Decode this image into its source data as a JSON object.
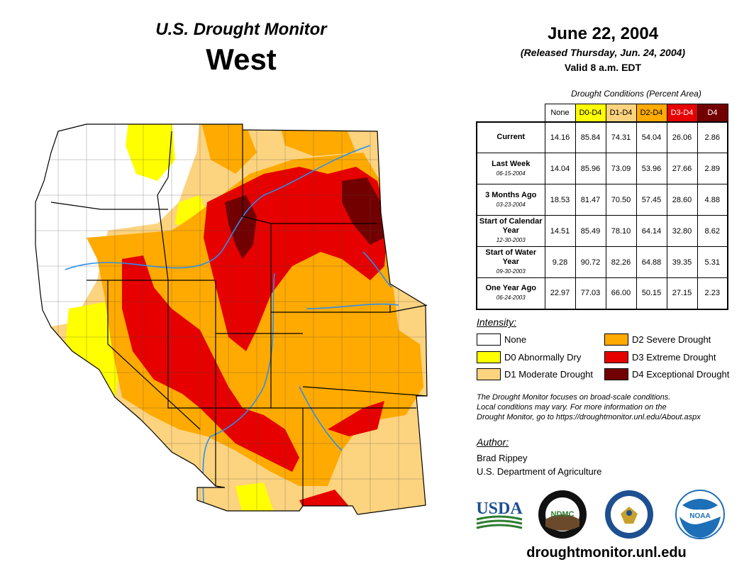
{
  "header": {
    "subtitle": "U.S. Drought Monitor",
    "region": "West"
  },
  "date": {
    "main": "June 22, 2004",
    "released": "(Released Thursday, Jun. 24, 2004)",
    "valid": "Valid 8 a.m. EDT"
  },
  "table": {
    "caption": "Drought Conditions (Percent Area)",
    "columns": [
      {
        "label": "None",
        "color": "#ffffff",
        "text_color": "#000000"
      },
      {
        "label": "D0-D4",
        "color": "#ffff00",
        "text_color": "#000000"
      },
      {
        "label": "D1-D4",
        "color": "#fcd37f",
        "text_color": "#000000"
      },
      {
        "label": "D2-D4",
        "color": "#ffaa00",
        "text_color": "#000000"
      },
      {
        "label": "D3-D4",
        "color": "#e60000",
        "text_color": "#ffffff"
      },
      {
        "label": "D4",
        "color": "#730000",
        "text_color": "#ffffff"
      }
    ],
    "rows": [
      {
        "label": "Current",
        "date": "",
        "values": [
          "14.16",
          "85.84",
          "74.31",
          "54.04",
          "26.06",
          "2.86"
        ]
      },
      {
        "label": "Last Week",
        "date": "06-15-2004",
        "values": [
          "14.04",
          "85.96",
          "73.09",
          "53.96",
          "27.66",
          "2.89"
        ]
      },
      {
        "label": "3 Months Ago",
        "date": "03-23-2004",
        "values": [
          "18.53",
          "81.47",
          "70.50",
          "57.45",
          "28.60",
          "4.88"
        ]
      },
      {
        "label": "Start of Calendar Year",
        "date": "12-30-2003",
        "values": [
          "14.51",
          "85.49",
          "78.10",
          "64.14",
          "32.80",
          "8.62"
        ]
      },
      {
        "label": "Start of Water Year",
        "date": "09-30-2003",
        "values": [
          "9.28",
          "90.72",
          "82.26",
          "64.88",
          "39.35",
          "5.31"
        ]
      },
      {
        "label": "One Year Ago",
        "date": "06-24-2003",
        "values": [
          "22.97",
          "77.03",
          "66.00",
          "50.15",
          "27.15",
          "2.23"
        ]
      }
    ]
  },
  "legend": {
    "title": "Intensity:",
    "items": [
      {
        "label": "None",
        "color": "#ffffff"
      },
      {
        "label": "D0 Abnormally Dry",
        "color": "#ffff00"
      },
      {
        "label": "D1 Moderate Drought",
        "color": "#fcd37f"
      },
      {
        "label": "D2 Severe Drought",
        "color": "#ffaa00"
      },
      {
        "label": "D3 Extreme Drought",
        "color": "#e60000"
      },
      {
        "label": "D4 Exceptional Drought",
        "color": "#730000"
      }
    ]
  },
  "note": {
    "line1": "The Drought Monitor focuses on broad-scale conditions.",
    "line2": "Local conditions may vary. For more information on the",
    "line3": "Drought Monitor, go to https://droughtmonitor.unl.edu/About.aspx"
  },
  "author": {
    "title": "Author:",
    "name": "Brad Rippey",
    "org": "U.S. Department of Agriculture"
  },
  "logos": {
    "usda": "USDA",
    "ndmc": "NDMC",
    "noaa": "NOAA"
  },
  "footer": {
    "url": "droughtmonitor.unl.edu"
  }
}
